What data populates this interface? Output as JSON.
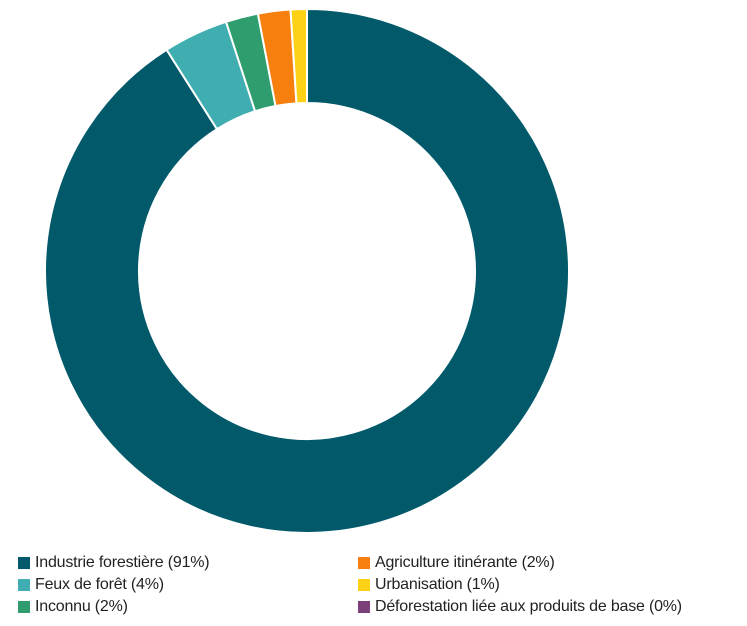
{
  "chart_data": {
    "type": "pie",
    "donut": true,
    "legend_position": "bottom",
    "slices": [
      {
        "label": "Industrie forestière (91%)",
        "value": 91,
        "color": "#01596a"
      },
      {
        "label": "Feux de forêt (4%)",
        "value": 4,
        "color": "#40aeb0"
      },
      {
        "label": "Inconnu (2%)",
        "value": 2,
        "color": "#2f9d6e"
      },
      {
        "label": "Agriculture itinérante (2%)",
        "value": 2,
        "color": "#f77f0e"
      },
      {
        "label": "Urbanisation (1%)",
        "value": 1,
        "color": "#fcd116"
      },
      {
        "label": "Déforestation liée aux produits de base (0%)",
        "value": 0,
        "color": "#7b3f7a"
      }
    ]
  },
  "legend": {
    "items": [
      {
        "label": "Industrie forestière (91%)",
        "color": "#01596a"
      },
      {
        "label": "Agriculture itinérante (2%)",
        "color": "#f77f0e"
      },
      {
        "label": "Feux de forêt (4%)",
        "color": "#40aeb0"
      },
      {
        "label": "Urbanisation (1%)",
        "color": "#fcd116"
      },
      {
        "label": "Inconnu (2%)",
        "color": "#2f9d6e"
      },
      {
        "label": "Déforestation liée aux produits de base (0%)",
        "color": "#7b3f7a"
      }
    ]
  }
}
